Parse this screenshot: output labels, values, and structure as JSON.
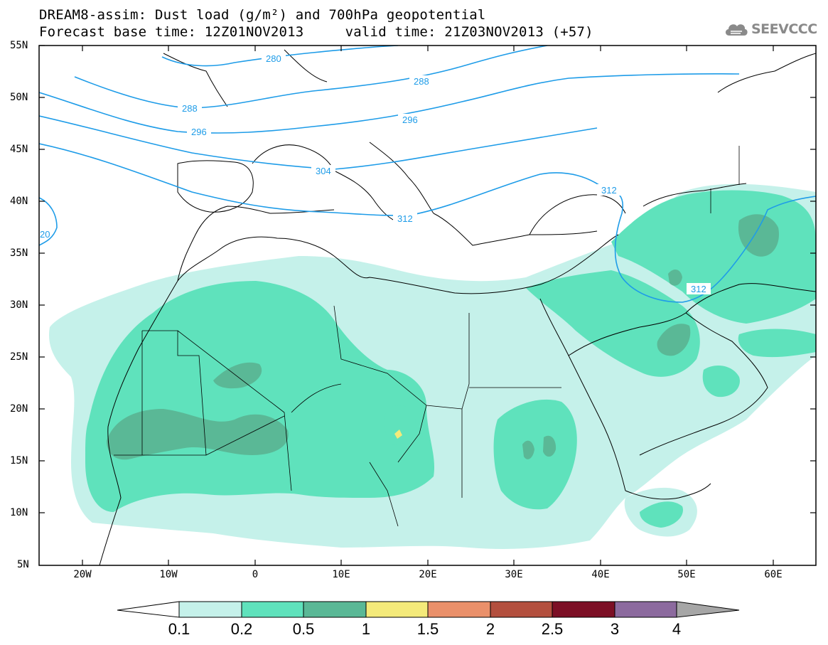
{
  "header": {
    "title_line1": "DREAM8-assim: Dust load (g/m²) and 700hPa geopotential",
    "title_line2": "Forecast base time: 12Z01NOV2013     valid time: 21Z03NOV2013 (+57)"
  },
  "logo": {
    "text": "SEEVCCC",
    "icon": "cloud-icon"
  },
  "map": {
    "lat_labels": [
      "55N",
      "50N",
      "45N",
      "40N",
      "35N",
      "30N",
      "25N",
      "20N",
      "15N",
      "10N",
      "5N"
    ],
    "lon_labels": [
      "20W",
      "10W",
      "0",
      "10E",
      "20E",
      "30E",
      "40E",
      "50E",
      "60E"
    ],
    "contour_labels": [
      "280",
      "288",
      "288",
      "296",
      "296",
      "304",
      "312",
      "312",
      "312",
      "20"
    ]
  },
  "colorbar": {
    "levels": [
      "0.1",
      "0.2",
      "0.5",
      "1",
      "1.5",
      "2",
      "2.5",
      "3",
      "4"
    ],
    "colors": [
      "#c5f1ea",
      "#5fe2bc",
      "#5ab896",
      "#f4ea7a",
      "#ea906a",
      "#b34f3e",
      "#7c0f25",
      "#8c6a9e"
    ],
    "below_color": "#ffffff",
    "above_color": "#a6a6a6"
  },
  "style": {
    "contour_color": "#1e9ce8",
    "border_color": "#000000"
  }
}
